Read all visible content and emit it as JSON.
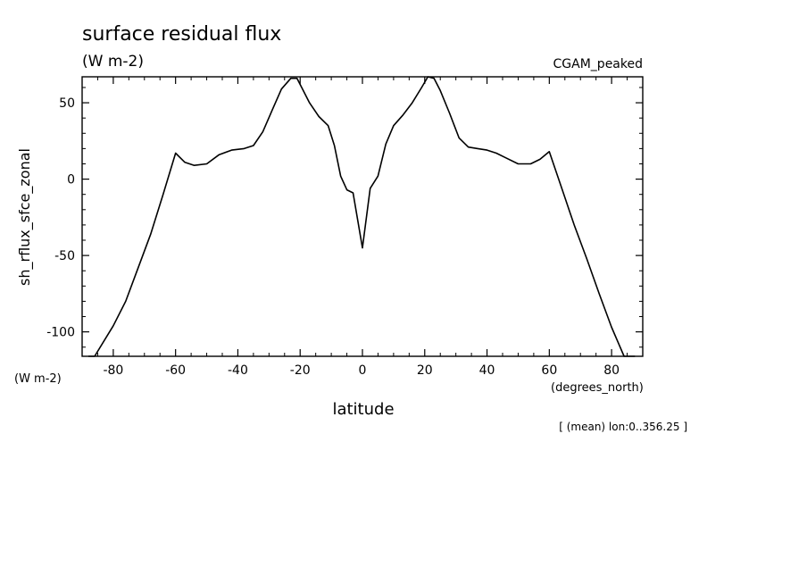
{
  "chart_data": {
    "type": "line",
    "title": "surface residual flux",
    "subtitle": "(W m-2)",
    "dataset_label": "CGAM_peaked",
    "ylabel": "sh_rflux_sfce_zonal",
    "y_units": "(W m-2)",
    "xlabel": "latitude",
    "x_units": "(degrees_north)",
    "footer": "[ (mean) lon:0..356.25 ]",
    "xlim": [
      -90,
      90
    ],
    "ylim": [
      -116,
      67
    ],
    "x_ticks": [
      -80,
      -60,
      -40,
      -20,
      0,
      20,
      40,
      60,
      80
    ],
    "x_tick_labels": [
      "-80",
      "-60",
      "-40",
      "-20",
      "0",
      "20",
      "40",
      "60",
      "80"
    ],
    "y_ticks": [
      -100,
      -50,
      0,
      50
    ],
    "y_tick_labels": [
      "-100",
      "-50",
      "0",
      "50"
    ],
    "grid": false,
    "series": [
      {
        "color": "#000000",
        "x": [
          -88,
          -86,
          -80,
          -76,
          -72,
          -68,
          -64,
          -60,
          -57,
          -54,
          -50,
          -46,
          -42,
          -38,
          -35,
          -32,
          -29,
          -26,
          -23,
          -21,
          -19,
          -17,
          -14,
          -11,
          -9,
          -7,
          -5,
          -3,
          0,
          2.5,
          5,
          7.5,
          10,
          13,
          16,
          19,
          21,
          23,
          25,
          28,
          31,
          34,
          37,
          40,
          43,
          46,
          50,
          54,
          57,
          60,
          64,
          68,
          72,
          76,
          80,
          84,
          87.5
        ],
        "values": [
          -116,
          -116,
          -96,
          -80,
          -58,
          -36,
          -10,
          17,
          11,
          9,
          10,
          16,
          19,
          20,
          22,
          31,
          45,
          59,
          66,
          66,
          58,
          50,
          41,
          35,
          22,
          2,
          -7,
          -9,
          -45,
          -6,
          2,
          23,
          35,
          42,
          50,
          60,
          67,
          66,
          58,
          43,
          27,
          21,
          20,
          19,
          17,
          14,
          10,
          10,
          13,
          18,
          -6,
          -30,
          -52,
          -75,
          -97,
          -116,
          -116
        ]
      }
    ]
  }
}
